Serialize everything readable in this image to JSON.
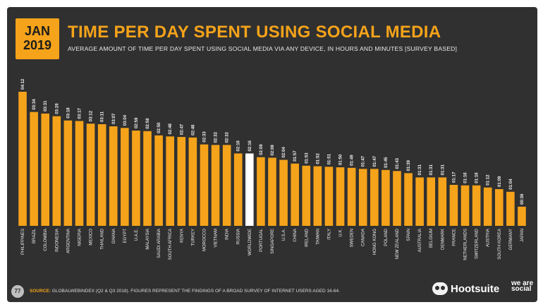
{
  "badge": {
    "month": "JAN",
    "year": "2019"
  },
  "title": "TIME PER DAY SPENT USING SOCIAL MEDIA",
  "subtitle": "AVERAGE AMOUNT OF TIME PER DAY SPENT USING SOCIAL MEDIA VIA ANY DEVICE, IN HOURS AND MINUTES [SURVEY BASED]",
  "footer": {
    "page_number": "77",
    "source_label": "SOURCE:",
    "source_text": "GLOBALWEBINDEX (Q2 & Q3 2018). FIGURES REPRESENT THE FINDINGS OF A BROAD SURVEY OF INTERNET USERS AGED 16-64."
  },
  "brand": {
    "name": "Hootsuite",
    "tagline": "we are social"
  },
  "colors": {
    "bar": "#f5a31a",
    "highlight": "#ffffff",
    "accent": "#f5a31a",
    "background": "#303030"
  },
  "icons": {
    "brand_logo": "owl-icon"
  },
  "chart_data": {
    "type": "bar",
    "categories": [
      "PHILIPPINES",
      "BRAZIL",
      "COLOMBIA",
      "INDONESIA",
      "ARGENTINA",
      "NIGERIA",
      "MEXICO",
      "THAILAND",
      "GHANA",
      "EGYPT",
      "U.A.E.",
      "MALAYSIA",
      "SAUDI ARABIA",
      "SOUTH AFRICA",
      "KENYA",
      "TURKEY",
      "MOROCCO",
      "VIETNAM",
      "INDIA",
      "RUSSIA",
      "WORLDWIDE",
      "PORTUGAL",
      "SINGAPORE",
      "U.S.A.",
      "CHINA",
      "IRELAND",
      "TAIWAN",
      "ITALY",
      "U.K.",
      "SWEDEN",
      "CANADA",
      "HONG KONG",
      "POLAND",
      "NEW ZEALAND",
      "SPAIN",
      "AUSTRALIA",
      "BELGIUM",
      "DENMARK",
      "FRANCE",
      "NETHERLANDS",
      "SWITZERLAND",
      "AUSTRIA",
      "SOUTH KOREA",
      "GERMANY",
      "JAPAN"
    ],
    "value_labels": [
      "04:12",
      "03:34",
      "03:31",
      "03:26",
      "03:18",
      "03:17",
      "03:12",
      "03:11",
      "03:07",
      "03:04",
      "02:59",
      "02:58",
      "02:50",
      "02:48",
      "02:47",
      "02:46",
      "02:33",
      "02:32",
      "02:32",
      "02:16",
      "02:16",
      "02:09",
      "02:08",
      "02:04",
      "01:57",
      "01:53",
      "01:52",
      "01:51",
      "01:50",
      "01:49",
      "01:47",
      "01:47",
      "01:45",
      "01:43",
      "01:39",
      "01:31",
      "01:31",
      "01:31",
      "01:17",
      "01:16",
      "01:16",
      "01:12",
      "01:09",
      "01:04",
      "00:36"
    ],
    "values_minutes": [
      252,
      214,
      211,
      206,
      198,
      197,
      192,
      191,
      187,
      184,
      179,
      178,
      170,
      168,
      167,
      166,
      153,
      152,
      152,
      136,
      136,
      129,
      128,
      124,
      117,
      113,
      112,
      111,
      110,
      109,
      107,
      107,
      105,
      103,
      99,
      91,
      91,
      91,
      77,
      76,
      76,
      72,
      69,
      64,
      36
    ],
    "highlight_category": "WORLDWIDE",
    "title": "TIME PER DAY SPENT USING SOCIAL MEDIA",
    "subtitle": "AVERAGE AMOUNT OF TIME PER DAY SPENT USING SOCIAL MEDIA VIA ANY DEVICE, IN HOURS AND MINUTES [SURVEY BASED]",
    "xlabel": "",
    "ylabel": "",
    "ylim": [
      0,
      252
    ],
    "grid": false,
    "legend": "none"
  }
}
